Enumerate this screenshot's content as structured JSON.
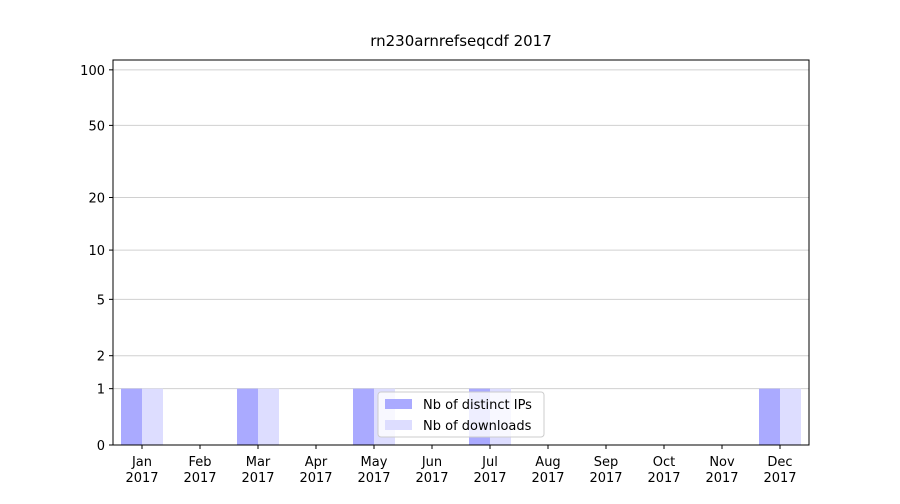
{
  "chart_data": {
    "type": "bar",
    "title": "rn230arnrefseqcdf 2017",
    "categories": [
      "Jan 2017",
      "Feb 2017",
      "Mar 2017",
      "Apr 2017",
      "May 2017",
      "Jun 2017",
      "Jul 2017",
      "Aug 2017",
      "Sep 2017",
      "Oct 2017",
      "Nov 2017",
      "Dec 2017"
    ],
    "series": [
      {
        "name": "Nb of distinct IPs",
        "color": "#aaaaff",
        "values": [
          1,
          0,
          1,
          0,
          1,
          0,
          1,
          0,
          0,
          0,
          0,
          1
        ]
      },
      {
        "name": "Nb of downloads",
        "color": "#ddddff",
        "values": [
          1,
          0,
          1,
          0,
          1,
          0,
          1,
          0,
          0,
          0,
          0,
          1
        ]
      }
    ],
    "yscale": "log1p",
    "ylim": [
      0,
      113
    ],
    "yticks": [
      0,
      1,
      2,
      5,
      10,
      20,
      50,
      100
    ],
    "grid": true,
    "legend": "lower center"
  }
}
